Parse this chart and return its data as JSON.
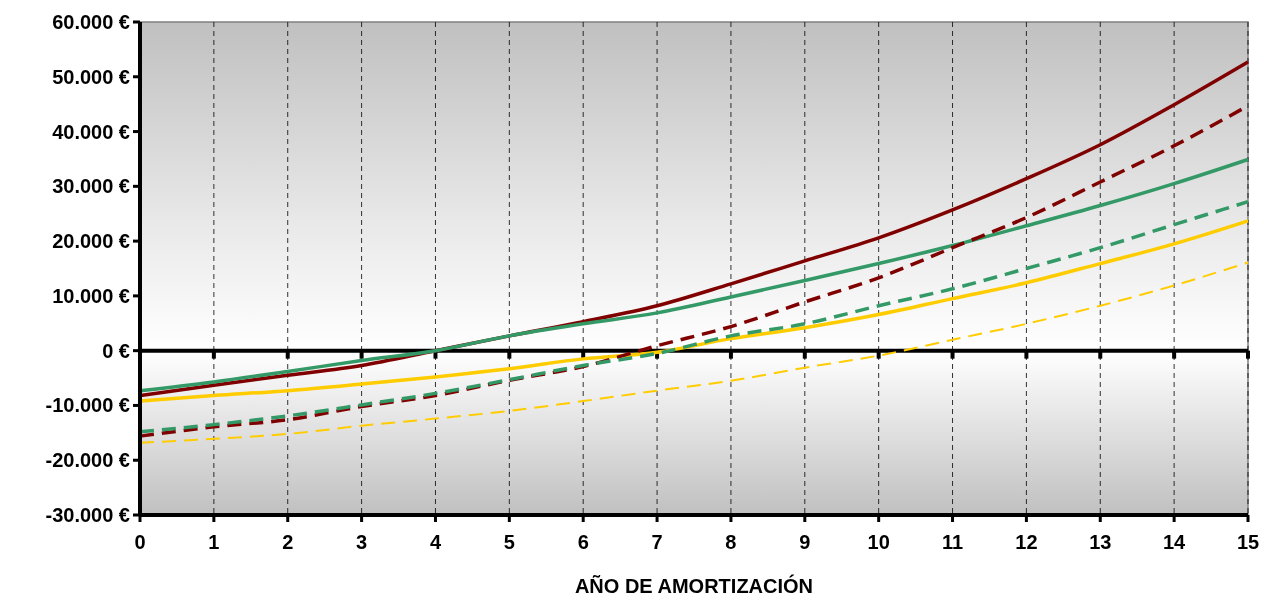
{
  "chart_data": {
    "type": "line",
    "xlabel": "AÑO DE AMORTIZACIÓN",
    "x": [
      0,
      1,
      2,
      3,
      4,
      5,
      6,
      7,
      8,
      9,
      10,
      11,
      12,
      13,
      14,
      15
    ],
    "xlim": [
      0,
      15
    ],
    "xticks": [
      0,
      1,
      2,
      3,
      4,
      5,
      6,
      7,
      8,
      9,
      10,
      11,
      12,
      13,
      14,
      15
    ],
    "ylim": [
      -30000,
      60000
    ],
    "yticks": [
      {
        "value": -30000,
        "label": "-30.000 €"
      },
      {
        "value": -20000,
        "label": "-20.000 €"
      },
      {
        "value": -10000,
        "label": "-10.000 €"
      },
      {
        "value": 0,
        "label": "0 €"
      },
      {
        "value": 10000,
        "label": "10.000 €"
      },
      {
        "value": 20000,
        "label": "20.000 €"
      },
      {
        "value": 30000,
        "label": "30.000 €"
      },
      {
        "value": 40000,
        "label": "40.000 €"
      },
      {
        "value": 50000,
        "label": "50.000 €"
      },
      {
        "value": 60000,
        "label": "60.000 €"
      }
    ],
    "grid": "x",
    "marker": "none",
    "ref_lines": [
      {
        "axis": "y",
        "value": 0,
        "color": "#000000",
        "line_style": "solid"
      }
    ],
    "series": [
      {
        "color": "#800000",
        "line_style": "solid",
        "values": [
          -8200,
          -6300,
          -4500,
          -2700,
          0,
          2700,
          5300,
          8200,
          12200,
          16400,
          20600,
          25700,
          31400,
          37600,
          44900,
          52700
        ]
      },
      {
        "color": "#339966",
        "line_style": "solid",
        "values": [
          -7300,
          -5700,
          -3800,
          -1800,
          0,
          2700,
          4900,
          6900,
          9800,
          12800,
          15900,
          19200,
          22800,
          26500,
          30500,
          34900
        ]
      },
      {
        "color": "#ffcc00",
        "line_style": "solid",
        "values": [
          -9200,
          -8200,
          -7300,
          -6100,
          -4800,
          -3300,
          -1500,
          -300,
          2200,
          4200,
          6600,
          9500,
          12400,
          15900,
          19500,
          23700
        ]
      },
      {
        "color": "#800000",
        "line_style": "dashed",
        "values": [
          -15600,
          -13900,
          -12600,
          -10200,
          -8200,
          -5400,
          -2900,
          900,
          4400,
          8900,
          13300,
          18800,
          24300,
          30800,
          37400,
          44700
        ]
      },
      {
        "color": "#339966",
        "line_style": "dashed",
        "values": [
          -14800,
          -13500,
          -11900,
          -9900,
          -7800,
          -5300,
          -2700,
          -500,
          2700,
          4900,
          8200,
          11300,
          15000,
          18800,
          23000,
          27200
        ]
      },
      {
        "color": "#ffcc00",
        "line_style": "dashed",
        "values": [
          -16800,
          -16100,
          -15200,
          -13700,
          -12400,
          -11000,
          -9200,
          -7300,
          -5500,
          -3100,
          -900,
          2000,
          4900,
          8200,
          11900,
          16100
        ]
      }
    ]
  }
}
